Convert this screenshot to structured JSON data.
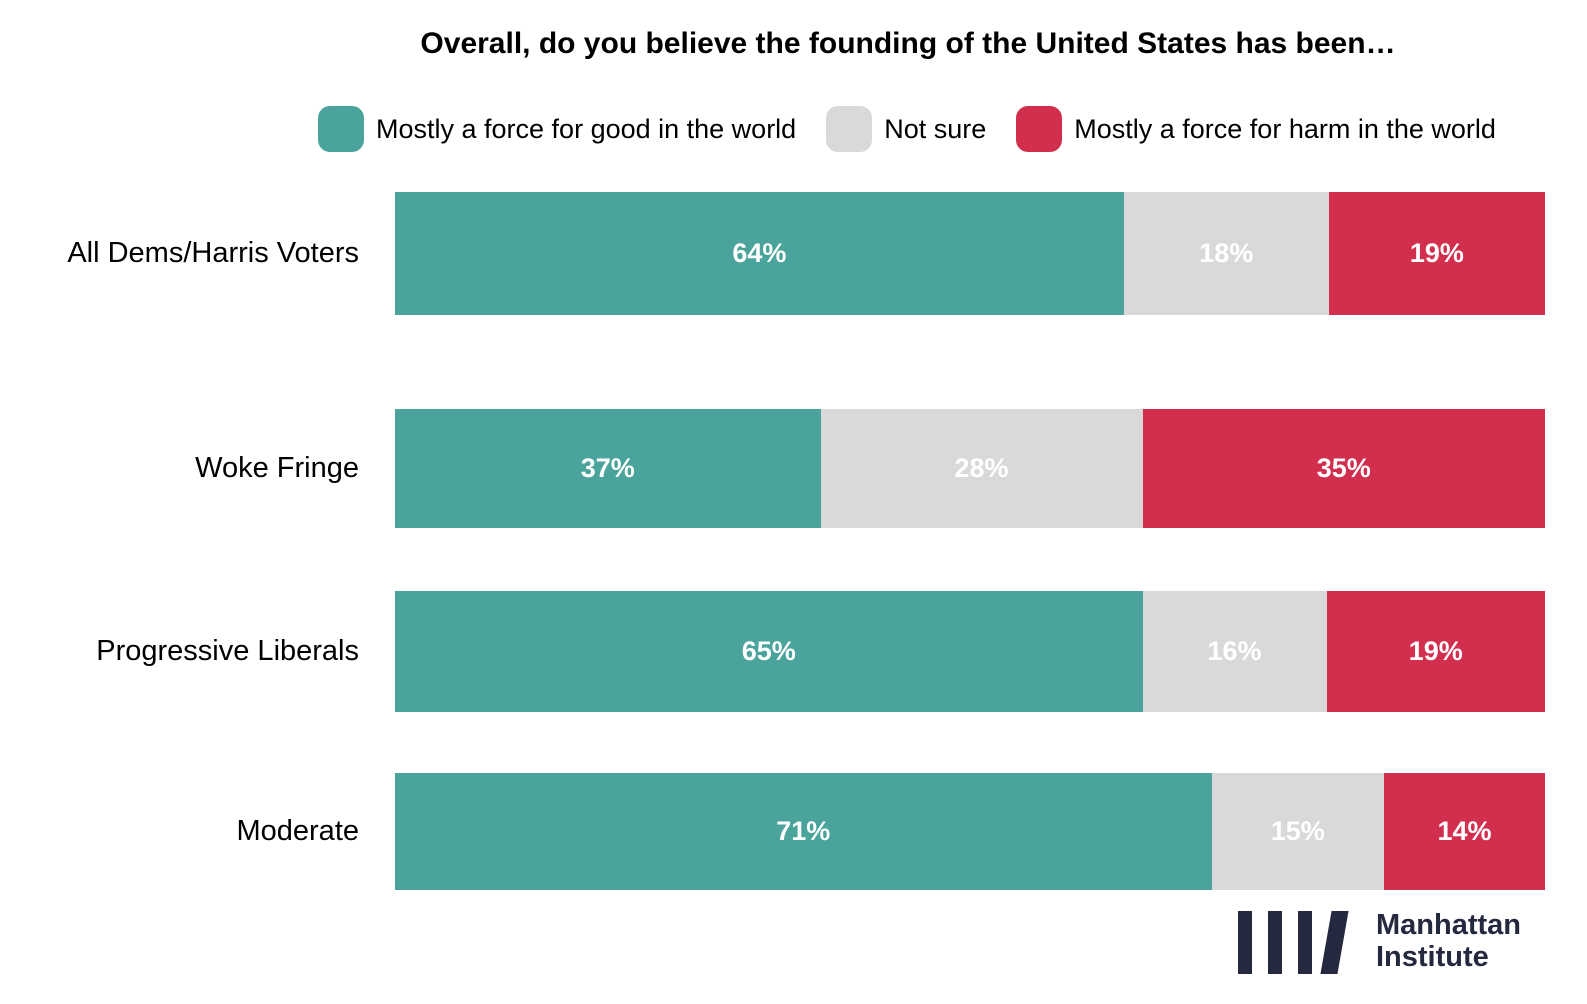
{
  "title": "Overall, do you believe the founding of the United States has been…",
  "legend": [
    {
      "label": "Mostly a force for good in the world",
      "color": "#4aa49b"
    },
    {
      "label": "Not sure",
      "color": "#d9d9d9"
    },
    {
      "label": "Mostly a force for harm in the world",
      "color": "#d22e4d"
    }
  ],
  "chart_data": {
    "type": "bar",
    "orientation": "horizontal-stacked",
    "title": "Overall, do you believe the founding of the United States has been…",
    "categories": [
      "All Dems/Harris Voters",
      "Woke Fringe",
      "Progressive Liberals",
      "Moderate"
    ],
    "series": [
      {
        "name": "Mostly a force for good in the world",
        "color": "#4aa49b",
        "values": [
          64,
          37,
          65,
          71
        ]
      },
      {
        "name": "Not sure",
        "color": "#d9d9d9",
        "values": [
          18,
          28,
          16,
          15
        ]
      },
      {
        "name": "Mostly a force for harm in the world",
        "color": "#d22e4d",
        "values": [
          19,
          35,
          19,
          14
        ]
      }
    ],
    "value_suffix": "%",
    "value_label_color": "#ffffff",
    "legend_position": "top",
    "grid": "off",
    "axis": "none"
  },
  "branding": {
    "line1": "Manhattan",
    "line2": "Institute",
    "color": "#242940"
  }
}
